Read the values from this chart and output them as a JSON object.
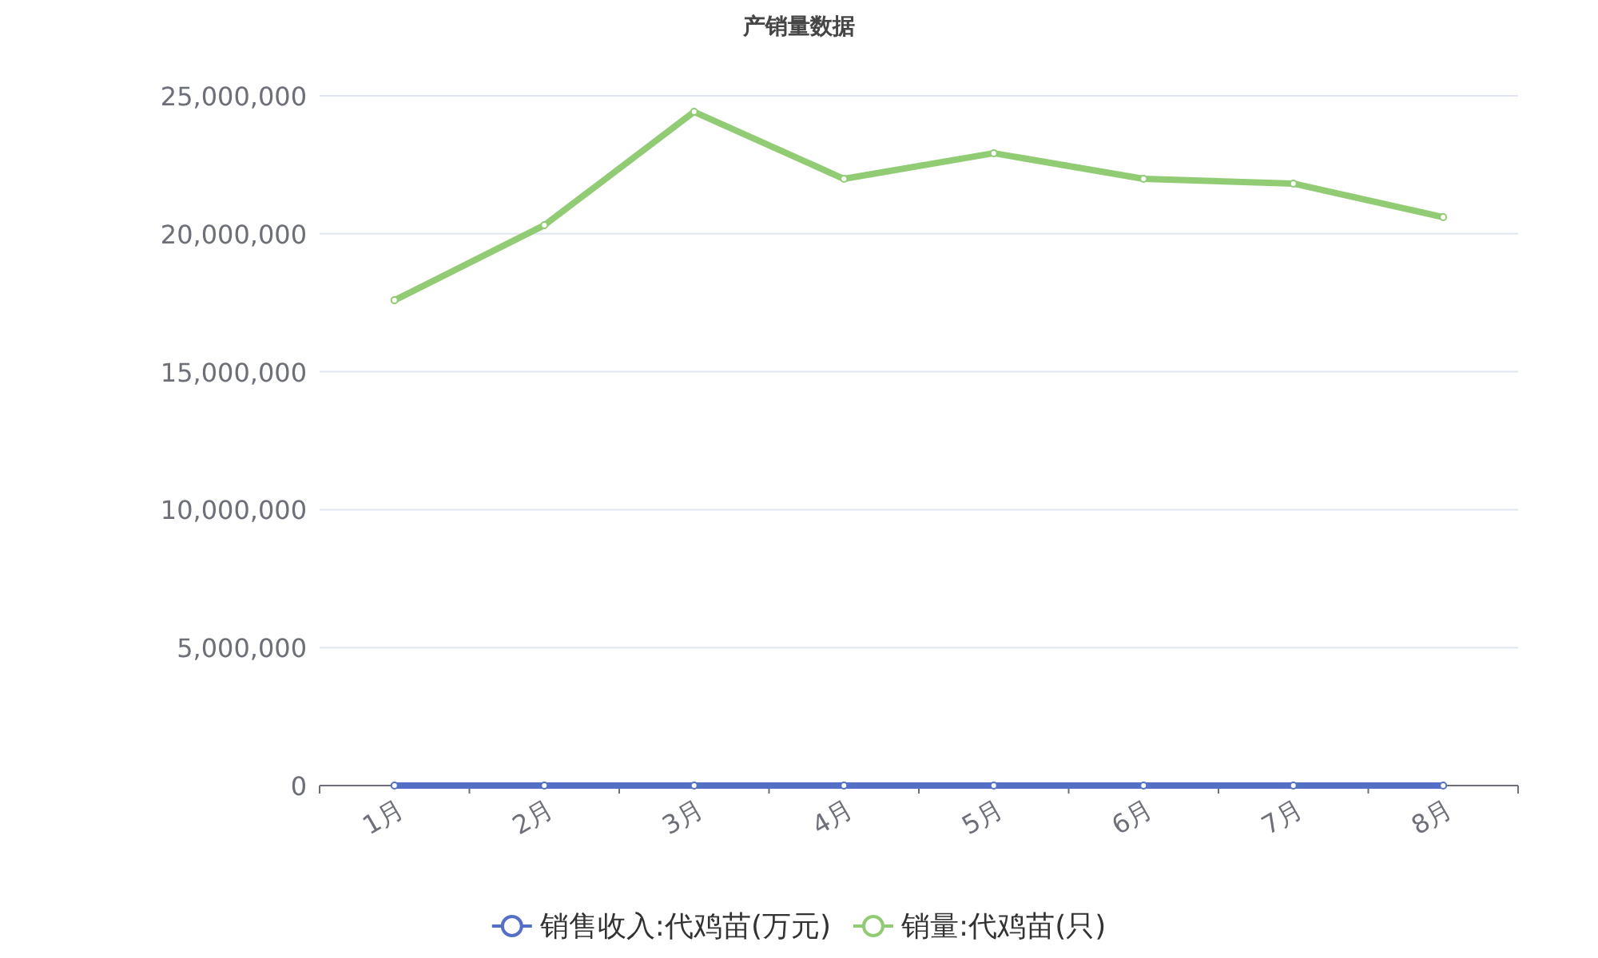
{
  "chart_data": {
    "type": "line",
    "title": "产销量数据",
    "categories": [
      "1月",
      "2月",
      "3月",
      "4月",
      "5月",
      "6月",
      "7月",
      "8月"
    ],
    "series": [
      {
        "name": "销售收入:代鸡苗(万元)",
        "color": "#5470c6",
        "values": [
          0,
          0,
          0,
          0,
          0,
          0,
          0,
          0
        ]
      },
      {
        "name": "销量:代鸡苗(只)",
        "color": "#91cc75",
        "values": [
          17590000,
          20310000,
          24420000,
          21990000,
          22920000,
          21990000,
          21820000,
          20600000
        ]
      }
    ],
    "ylim": [
      0,
      25000000
    ],
    "yticks": [
      {
        "value": 0,
        "label": "0"
      },
      {
        "value": 5000000,
        "label": "5,000,000"
      },
      {
        "value": 10000000,
        "label": "10,000,000"
      },
      {
        "value": 15000000,
        "label": "15,000,000"
      },
      {
        "value": 20000000,
        "label": "20,000,000"
      },
      {
        "value": 25000000,
        "label": "25,000,000"
      }
    ],
    "grid": "y",
    "legend": "bottom",
    "marker": "circle"
  }
}
